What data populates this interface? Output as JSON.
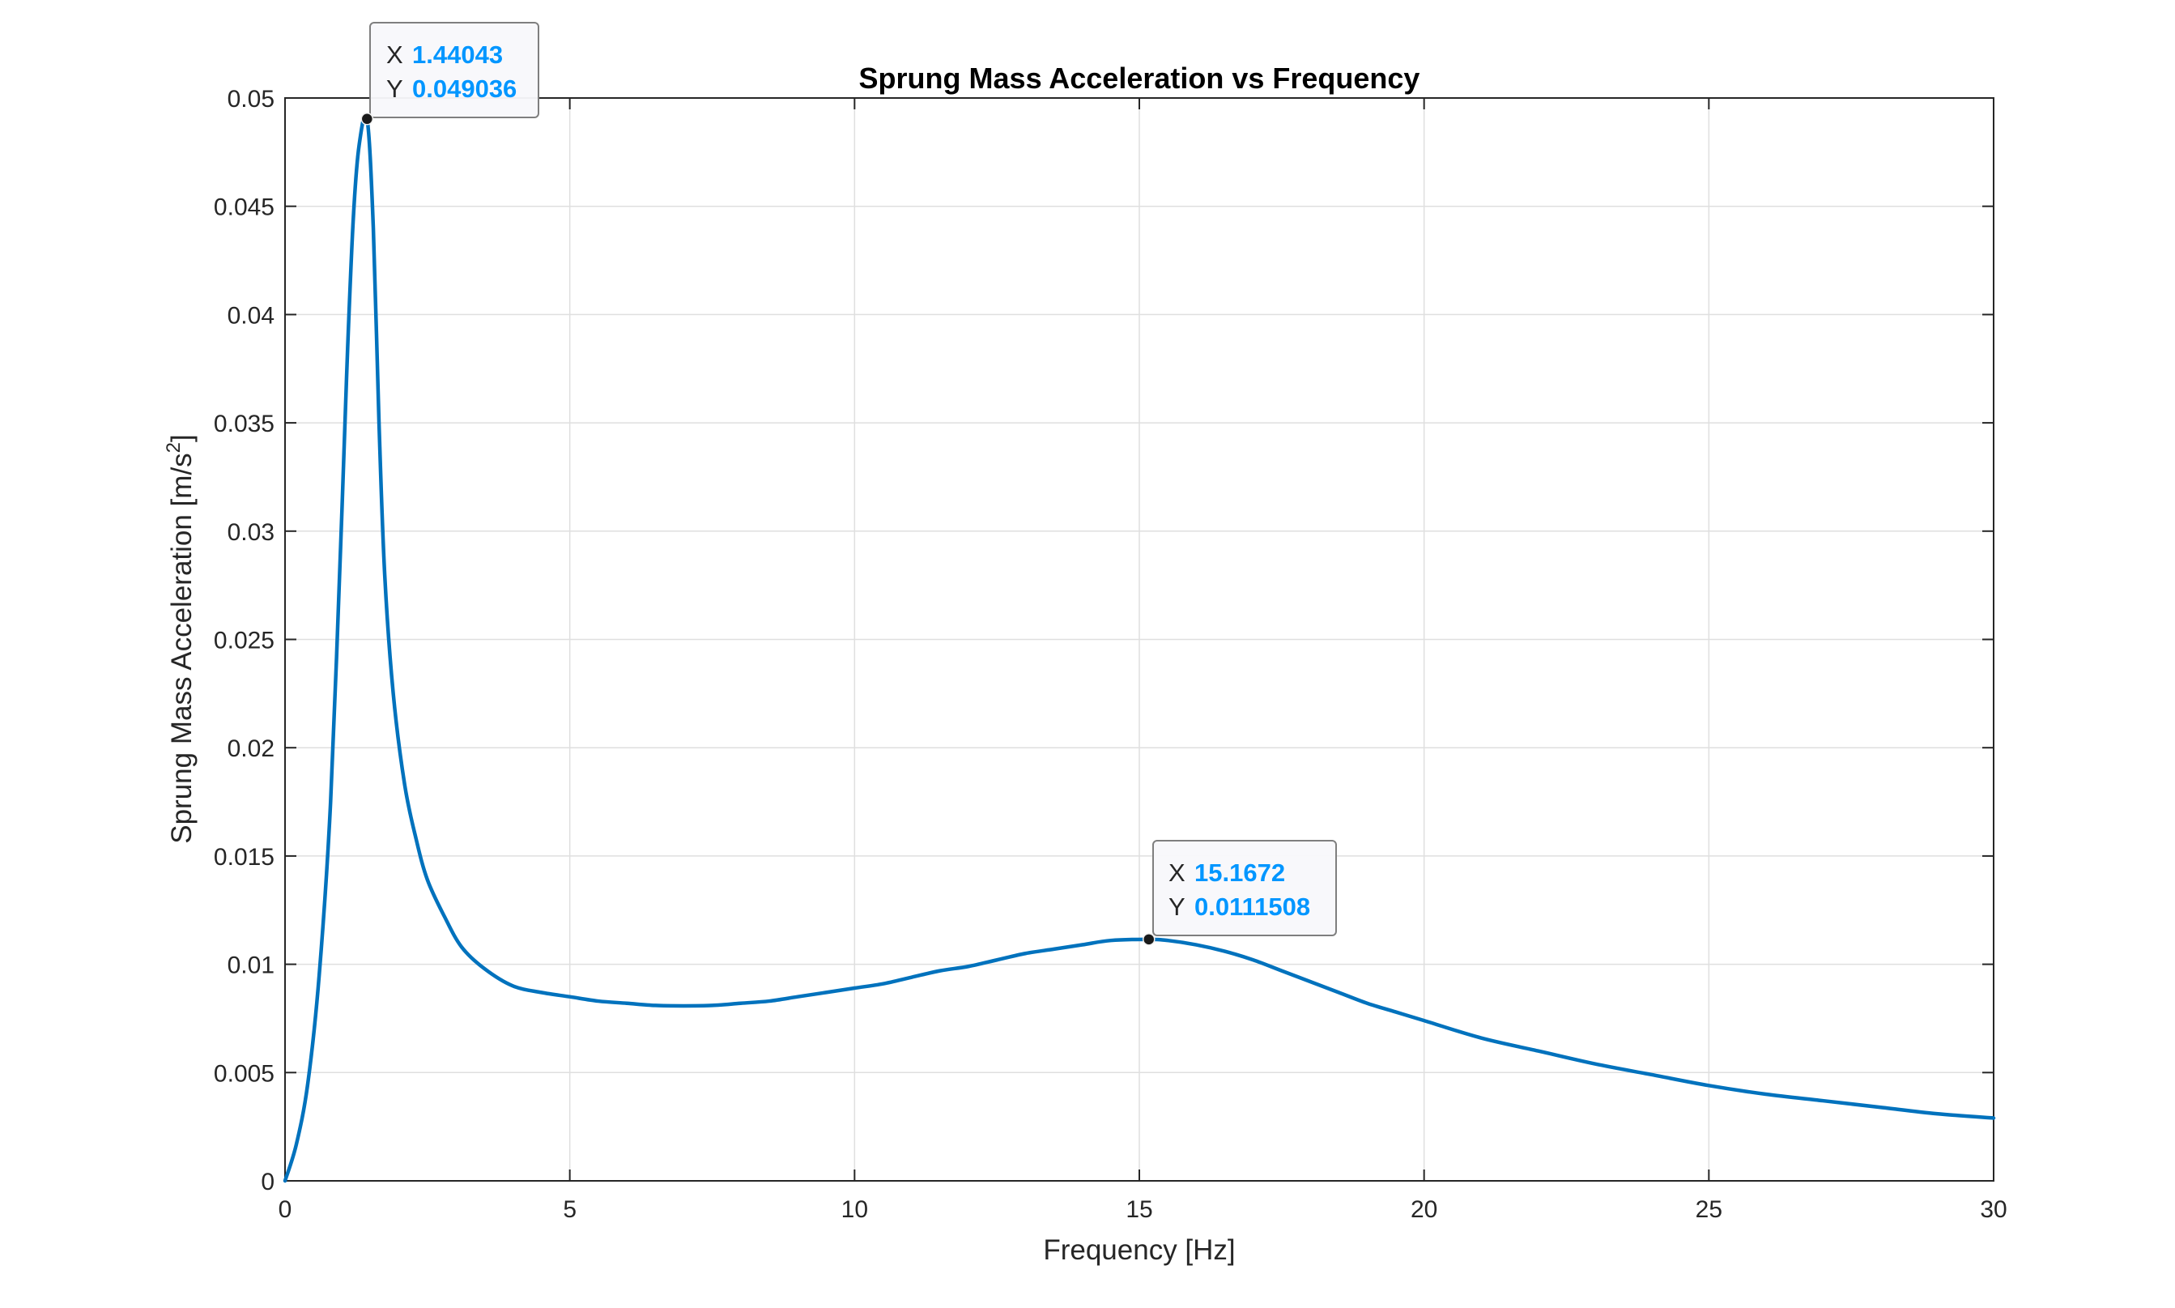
{
  "chart_data": {
    "type": "line",
    "title": "Sprung Mass Acceleration vs Frequency",
    "xlabel": "Frequency [Hz]",
    "ylabel": {
      "text": "Sprung Mass Acceleration [m/s",
      "superscript": "2",
      "suffix": "]"
    },
    "xlim": [
      0,
      30
    ],
    "ylim": [
      0,
      0.05
    ],
    "xticks": [
      0,
      5,
      10,
      15,
      20,
      25,
      30
    ],
    "xtick_labels": [
      "0",
      "5",
      "10",
      "15",
      "20",
      "25",
      "30"
    ],
    "yticks": [
      0,
      0.005,
      0.01,
      0.015,
      0.02,
      0.025,
      0.03,
      0.035,
      0.04,
      0.045,
      0.05
    ],
    "ytick_labels": [
      "0",
      "0.005",
      "0.01",
      "0.015",
      "0.02",
      "0.025",
      "0.03",
      "0.035",
      "0.04",
      "0.045",
      "0.05"
    ],
    "grid": true,
    "series": [
      {
        "color": "#0072bd",
        "x": [
          0,
          0.2,
          0.4,
          0.6,
          0.8,
          1.0,
          1.1,
          1.2,
          1.3,
          1.44043,
          1.55,
          1.65,
          1.75,
          1.9,
          2.1,
          2.3,
          2.5,
          2.8,
          3.1,
          3.5,
          4.0,
          4.5,
          5.0,
          5.5,
          6.0,
          6.5,
          7.0,
          7.5,
          8.0,
          8.5,
          9.0,
          9.5,
          10.0,
          10.5,
          11.0,
          11.5,
          12.0,
          12.5,
          13.0,
          13.5,
          14.0,
          14.5,
          15.16723,
          15.5,
          16.0,
          16.5,
          17.0,
          17.5,
          18.0,
          18.5,
          19.0,
          19.5,
          20.0,
          21.0,
          22.0,
          23.0,
          24.0,
          25.0,
          26.0,
          27.0,
          28.0,
          29.0,
          30.0
        ],
        "y": [
          0,
          0.0017,
          0.0045,
          0.0095,
          0.0175,
          0.031,
          0.0385,
          0.0445,
          0.0478,
          0.049036,
          0.044,
          0.035,
          0.028,
          0.0225,
          0.0183,
          0.0158,
          0.0139,
          0.0122,
          0.0108,
          0.0098,
          0.009,
          0.0087,
          0.0085,
          0.0083,
          0.0082,
          0.0081,
          0.00808,
          0.0081,
          0.0082,
          0.0083,
          0.0085,
          0.0087,
          0.0089,
          0.0091,
          0.0094,
          0.0097,
          0.0099,
          0.0102,
          0.0105,
          0.0107,
          0.0109,
          0.0111,
          0.0111508,
          0.0111,
          0.0109,
          0.0106,
          0.0102,
          0.0097,
          0.0092,
          0.0087,
          0.0082,
          0.0078,
          0.0074,
          0.0066,
          0.006,
          0.0054,
          0.0049,
          0.0044,
          0.004,
          0.0037,
          0.0034,
          0.0031,
          0.0029
        ]
      }
    ],
    "datatips": [
      {
        "x": 1.44043,
        "y": 0.049036,
        "x_key": "X",
        "y_key": "Y",
        "x_text": "1.44043",
        "y_text": "0.049036"
      },
      {
        "x": 15.1672,
        "y": 0.0111508,
        "x_key": "X",
        "y_key": "Y",
        "x_text": "15.1672",
        "y_text": "0.0111508"
      }
    ],
    "colors": {
      "line": "#0072bd",
      "datatip_value": "#0096ff",
      "grid": "#dfdfdf",
      "axes": "#262626"
    }
  }
}
